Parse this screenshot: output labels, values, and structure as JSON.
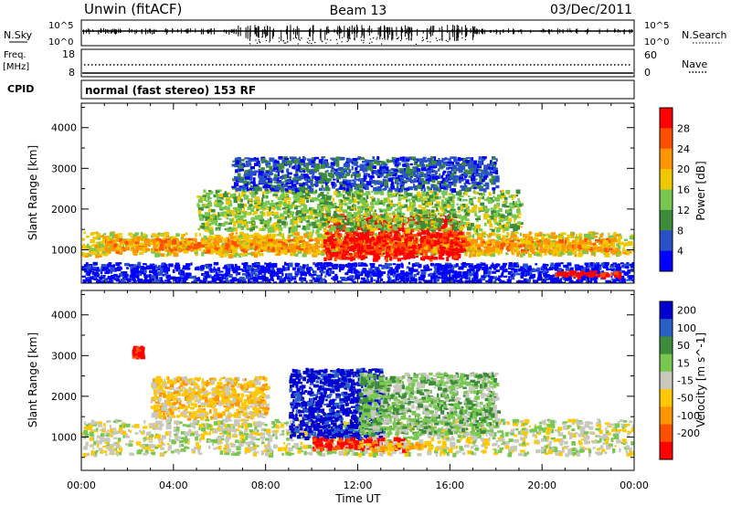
{
  "header": {
    "station": "Unwin (fitACF)",
    "beam": "Beam 13",
    "date": "03/Dec/2011"
  },
  "top_panels": {
    "nsky_label": "N.Sky",
    "nsearch_label": "N.Search",
    "nsky_ticks": [
      "10^5",
      "10^0"
    ],
    "nsearch_ticks": [
      "10^5",
      "10^0"
    ],
    "freq_label": "Freq.",
    "freq_unit": "[MHz]",
    "freq_ticks": [
      "18",
      "8"
    ],
    "nave_label": "Nave",
    "nave_ticks": [
      "60",
      "0"
    ],
    "cpid_label": "CPID",
    "cpid_text": "normal (fast stereo) 153 RF"
  },
  "chart_data": [
    {
      "type": "heatmap",
      "title": "",
      "xlabel": "",
      "ylabel": "Slant Range [km]",
      "x_ticks": [
        "00:00",
        "04:00",
        "08:00",
        "12:00",
        "16:00",
        "20:00",
        "00:00"
      ],
      "y_ticks": [
        "1000",
        "2000",
        "3000",
        "4000"
      ],
      "ylim": [
        180,
        4600
      ],
      "colorbar": {
        "label": "Power [dB]",
        "ticks": [
          "4",
          "8",
          "12",
          "16",
          "20",
          "24",
          "28"
        ],
        "colors": [
          "#0000ff",
          "#2850c8",
          "#3c8c3c",
          "#78c850",
          "#f0c800",
          "#ff9600",
          "#ff5000",
          "#ff0000"
        ]
      },
      "features": [
        {
          "t0": 0.0,
          "t1": 24.0,
          "r0": 900,
          "r1": 1450,
          "level": 4
        },
        {
          "t0": 1.0,
          "t1": 23.0,
          "r0": 1000,
          "r1": 1300,
          "level": 5
        },
        {
          "t0": 10.5,
          "t1": 16.5,
          "r0": 800,
          "r1": 1900,
          "level": 7
        },
        {
          "t0": 5.0,
          "t1": 19.0,
          "r0": 1500,
          "r1": 2500,
          "level": 3
        },
        {
          "t0": 6.5,
          "t1": 18.0,
          "r0": 2500,
          "r1": 3300,
          "level": 1
        },
        {
          "t0": 0.0,
          "t1": 24.0,
          "r0": 200,
          "r1": 700,
          "level": 0
        },
        {
          "t0": 20.5,
          "t1": 23.5,
          "r0": 380,
          "r1": 500,
          "level": 7
        }
      ]
    },
    {
      "type": "heatmap",
      "title": "",
      "xlabel": "Time UT",
      "ylabel": "Slant Range [km]",
      "x_ticks": [
        "00:00",
        "04:00",
        "08:00",
        "12:00",
        "16:00",
        "20:00",
        "00:00"
      ],
      "y_ticks": [
        "1000",
        "2000",
        "3000",
        "4000"
      ],
      "ylim": [
        180,
        4600
      ],
      "colorbar": {
        "label": "Velocity [m s^-1]",
        "ticks": [
          "200",
          "100",
          "50",
          "15",
          "-15",
          "-50",
          "-100",
          "-200"
        ],
        "colors": [
          "#0000d0",
          "#2860c8",
          "#3c8c3c",
          "#78c850",
          "#c8c8be",
          "#ffc800",
          "#ff9600",
          "#ff5000",
          "#ff0000"
        ]
      },
      "features": [
        {
          "t0": 0.0,
          "t1": 24.0,
          "r0": 600,
          "r1": 1450,
          "level": 4
        },
        {
          "t0": 9.0,
          "t1": 13.0,
          "r0": 1000,
          "r1": 2700,
          "level": 0
        },
        {
          "t0": 12.0,
          "t1": 18.0,
          "r0": 1100,
          "r1": 2600,
          "level": 3
        },
        {
          "t0": 10.0,
          "t1": 14.0,
          "r0": 700,
          "r1": 1000,
          "level": 8
        },
        {
          "t0": 12.0,
          "t1": 15.0,
          "r0": 700,
          "r1": 900,
          "level": 5
        },
        {
          "t0": 3.0,
          "t1": 8.0,
          "r0": 1500,
          "r1": 2500,
          "level": 5
        },
        {
          "t0": 2.2,
          "t1": 2.6,
          "r0": 3000,
          "r1": 3250,
          "level": 8
        }
      ]
    }
  ]
}
